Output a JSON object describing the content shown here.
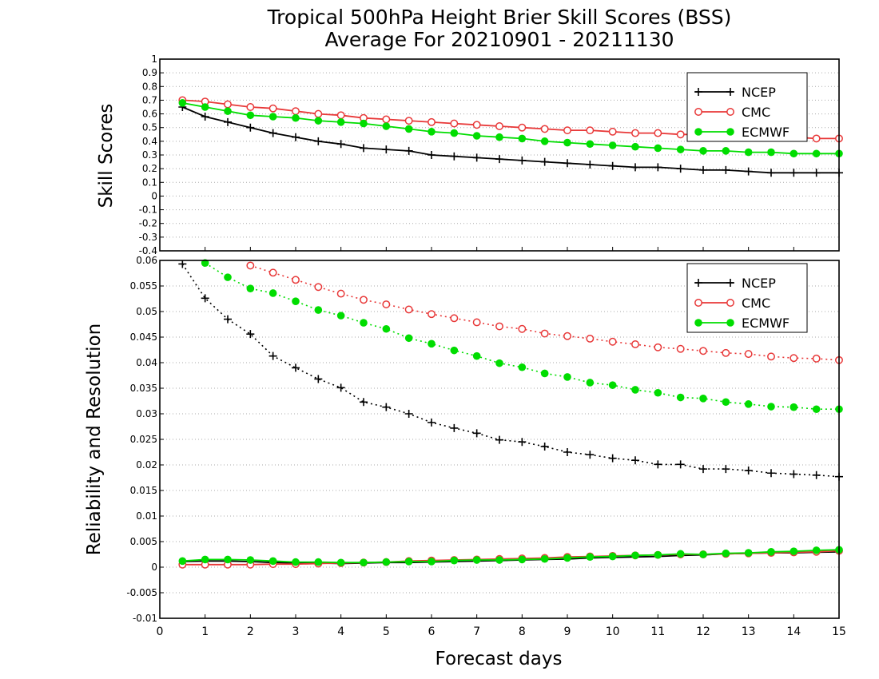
{
  "title_line1": "Tropical 500hPa Height Brier Skill Scores (BSS)",
  "title_line2": "Average For 20210901 - 20211130",
  "colors": {
    "NCEP": "#000000",
    "CMC": "#e83838",
    "ECMWF": "#00dd00"
  },
  "chart_data": [
    {
      "type": "line",
      "panel": "top",
      "ylabel": "Skill Scores",
      "xlim": [
        0,
        15
      ],
      "ylim": [
        -0.4,
        1
      ],
      "yticks": [
        "1",
        "0.9",
        "0.8",
        "0.7",
        "0.6",
        "0.5",
        "0.4",
        "0.3",
        "0.2",
        "0.1",
        "0",
        "-0.1",
        "-0.2",
        "-0.3",
        "-0.4"
      ],
      "grid": true,
      "legend_position": "top-right",
      "x": [
        0.5,
        1,
        1.5,
        2,
        2.5,
        3,
        3.5,
        4,
        4.5,
        5,
        5.5,
        6,
        6.5,
        7,
        7.5,
        8,
        8.5,
        9,
        9.5,
        10,
        10.5,
        11,
        11.5,
        12,
        12.5,
        13,
        13.5,
        14,
        14.5,
        15
      ],
      "series": [
        {
          "name": "NCEP",
          "line": "solid",
          "marker": "plus",
          "values": [
            0.65,
            0.58,
            0.54,
            0.5,
            0.46,
            0.43,
            0.4,
            0.38,
            0.35,
            0.34,
            0.33,
            0.3,
            0.29,
            0.28,
            0.27,
            0.26,
            0.25,
            0.24,
            0.23,
            0.22,
            0.21,
            0.21,
            0.2,
            0.19,
            0.19,
            0.18,
            0.17,
            0.17,
            0.17,
            0.17
          ]
        },
        {
          "name": "CMC",
          "line": "solid",
          "marker": "open-circle",
          "values": [
            0.7,
            0.69,
            0.67,
            0.65,
            0.64,
            0.62,
            0.6,
            0.59,
            0.57,
            0.56,
            0.55,
            0.54,
            0.53,
            0.52,
            0.51,
            0.5,
            0.49,
            0.48,
            0.48,
            0.47,
            0.46,
            0.46,
            0.45,
            0.45,
            0.44,
            0.44,
            0.43,
            0.43,
            0.42,
            0.42
          ]
        },
        {
          "name": "ECMWF",
          "line": "solid",
          "marker": "filled-circle",
          "values": [
            0.68,
            0.65,
            0.62,
            0.59,
            0.58,
            0.57,
            0.55,
            0.54,
            0.53,
            0.51,
            0.49,
            0.47,
            0.46,
            0.44,
            0.43,
            0.42,
            0.4,
            0.39,
            0.38,
            0.37,
            0.36,
            0.35,
            0.34,
            0.33,
            0.33,
            0.32,
            0.32,
            0.31,
            0.31,
            0.31
          ]
        }
      ]
    },
    {
      "type": "line",
      "panel": "bottom",
      "ylabel": "Reliability and Resolution",
      "xlabel": "Forecast days",
      "xlim": [
        0,
        15
      ],
      "ylim": [
        -0.01,
        0.06
      ],
      "xticks": [
        "0",
        "1",
        "2",
        "3",
        "4",
        "5",
        "6",
        "7",
        "8",
        "9",
        "10",
        "11",
        "12",
        "13",
        "14",
        "15"
      ],
      "yticks": [
        "0.06",
        "0.055",
        "0.05",
        "0.045",
        "0.04",
        "0.035",
        "0.03",
        "0.025",
        "0.02",
        "0.015",
        "0.01",
        "0.005",
        "0",
        "-0.005",
        "-0.01"
      ],
      "grid": true,
      "legend_position": "top-right",
      "x": [
        0.5,
        1,
        1.5,
        2,
        2.5,
        3,
        3.5,
        4,
        4.5,
        5,
        5.5,
        6,
        6.5,
        7,
        7.5,
        8,
        8.5,
        9,
        9.5,
        10,
        10.5,
        11,
        11.5,
        12,
        12.5,
        13,
        13.5,
        14,
        14.5,
        15
      ],
      "series": [
        {
          "name": "NCEP",
          "line": "dotted",
          "marker": "plus",
          "values": [
            0.0593,
            0.0526,
            0.0485,
            0.0456,
            0.0413,
            0.039,
            0.0368,
            0.0351,
            0.0323,
            0.0313,
            0.03,
            0.0283,
            0.0272,
            0.0262,
            0.0249,
            0.0245,
            0.0236,
            0.0225,
            0.022,
            0.0213,
            0.0209,
            0.0201,
            0.0201,
            0.0192,
            0.0192,
            0.0189,
            0.0184,
            0.0182,
            0.018,
            0.0177
          ]
        },
        {
          "name": "CMC",
          "line": "dotted",
          "marker": "open-circle",
          "values": [
            null,
            null,
            null,
            0.059,
            0.0576,
            0.0562,
            0.0548,
            0.0535,
            0.0523,
            0.0514,
            0.0504,
            0.0495,
            0.0487,
            0.0479,
            0.0471,
            0.0466,
            0.0457,
            0.0452,
            0.0447,
            0.0441,
            0.0436,
            0.043,
            0.0427,
            0.0423,
            0.0419,
            0.0417,
            0.0412,
            0.0409,
            0.0408,
            0.0405
          ]
        },
        {
          "name": "ECMWF",
          "line": "dotted",
          "marker": "filled-circle",
          "values": [
            null,
            0.0595,
            0.0567,
            0.0545,
            0.0536,
            0.052,
            0.0503,
            0.0492,
            0.0478,
            0.0466,
            0.0448,
            0.0437,
            0.0424,
            0.0413,
            0.0399,
            0.0391,
            0.0379,
            0.0372,
            0.0361,
            0.0356,
            0.0347,
            0.0341,
            0.0332,
            0.033,
            0.0323,
            0.0319,
            0.0314,
            0.0313,
            0.0309,
            0.0309
          ]
        },
        {
          "name": "NCEP",
          "line": "solid",
          "marker": "none",
          "values": [
            0.0011,
            0.0012,
            0.0012,
            0.0011,
            0.0009,
            0.0008,
            0.0008,
            0.0007,
            0.0008,
            0.0009,
            0.0009,
            0.001,
            0.0011,
            0.0012,
            0.0013,
            0.0014,
            0.0015,
            0.0016,
            0.0018,
            0.0019,
            0.002,
            0.0021,
            0.0023,
            0.0024,
            0.0026,
            0.0027,
            0.0028,
            0.0028,
            0.0029,
            0.003
          ]
        },
        {
          "name": "CMC",
          "line": "solid",
          "marker": "open-circle",
          "values": [
            0.0005,
            0.0005,
            0.0005,
            0.0005,
            0.0006,
            0.0006,
            0.0007,
            0.0008,
            0.0009,
            0.001,
            0.0012,
            0.0013,
            0.0014,
            0.0015,
            0.0016,
            0.0017,
            0.0018,
            0.002,
            0.0021,
            0.0022,
            0.0023,
            0.0024,
            0.0025,
            0.0025,
            0.0026,
            0.0027,
            0.0028,
            0.0029,
            0.003,
            0.0032
          ]
        },
        {
          "name": "ECMWF",
          "line": "solid",
          "marker": "filled-circle",
          "values": [
            0.0012,
            0.0015,
            0.0015,
            0.0014,
            0.0012,
            0.001,
            0.001,
            0.0009,
            0.0009,
            0.001,
            0.0011,
            0.0011,
            0.0013,
            0.0014,
            0.0014,
            0.0015,
            0.0016,
            0.0018,
            0.002,
            0.0021,
            0.0023,
            0.0024,
            0.0026,
            0.0025,
            0.0027,
            0.0028,
            0.003,
            0.0031,
            0.0033,
            0.0034
          ]
        }
      ]
    }
  ]
}
